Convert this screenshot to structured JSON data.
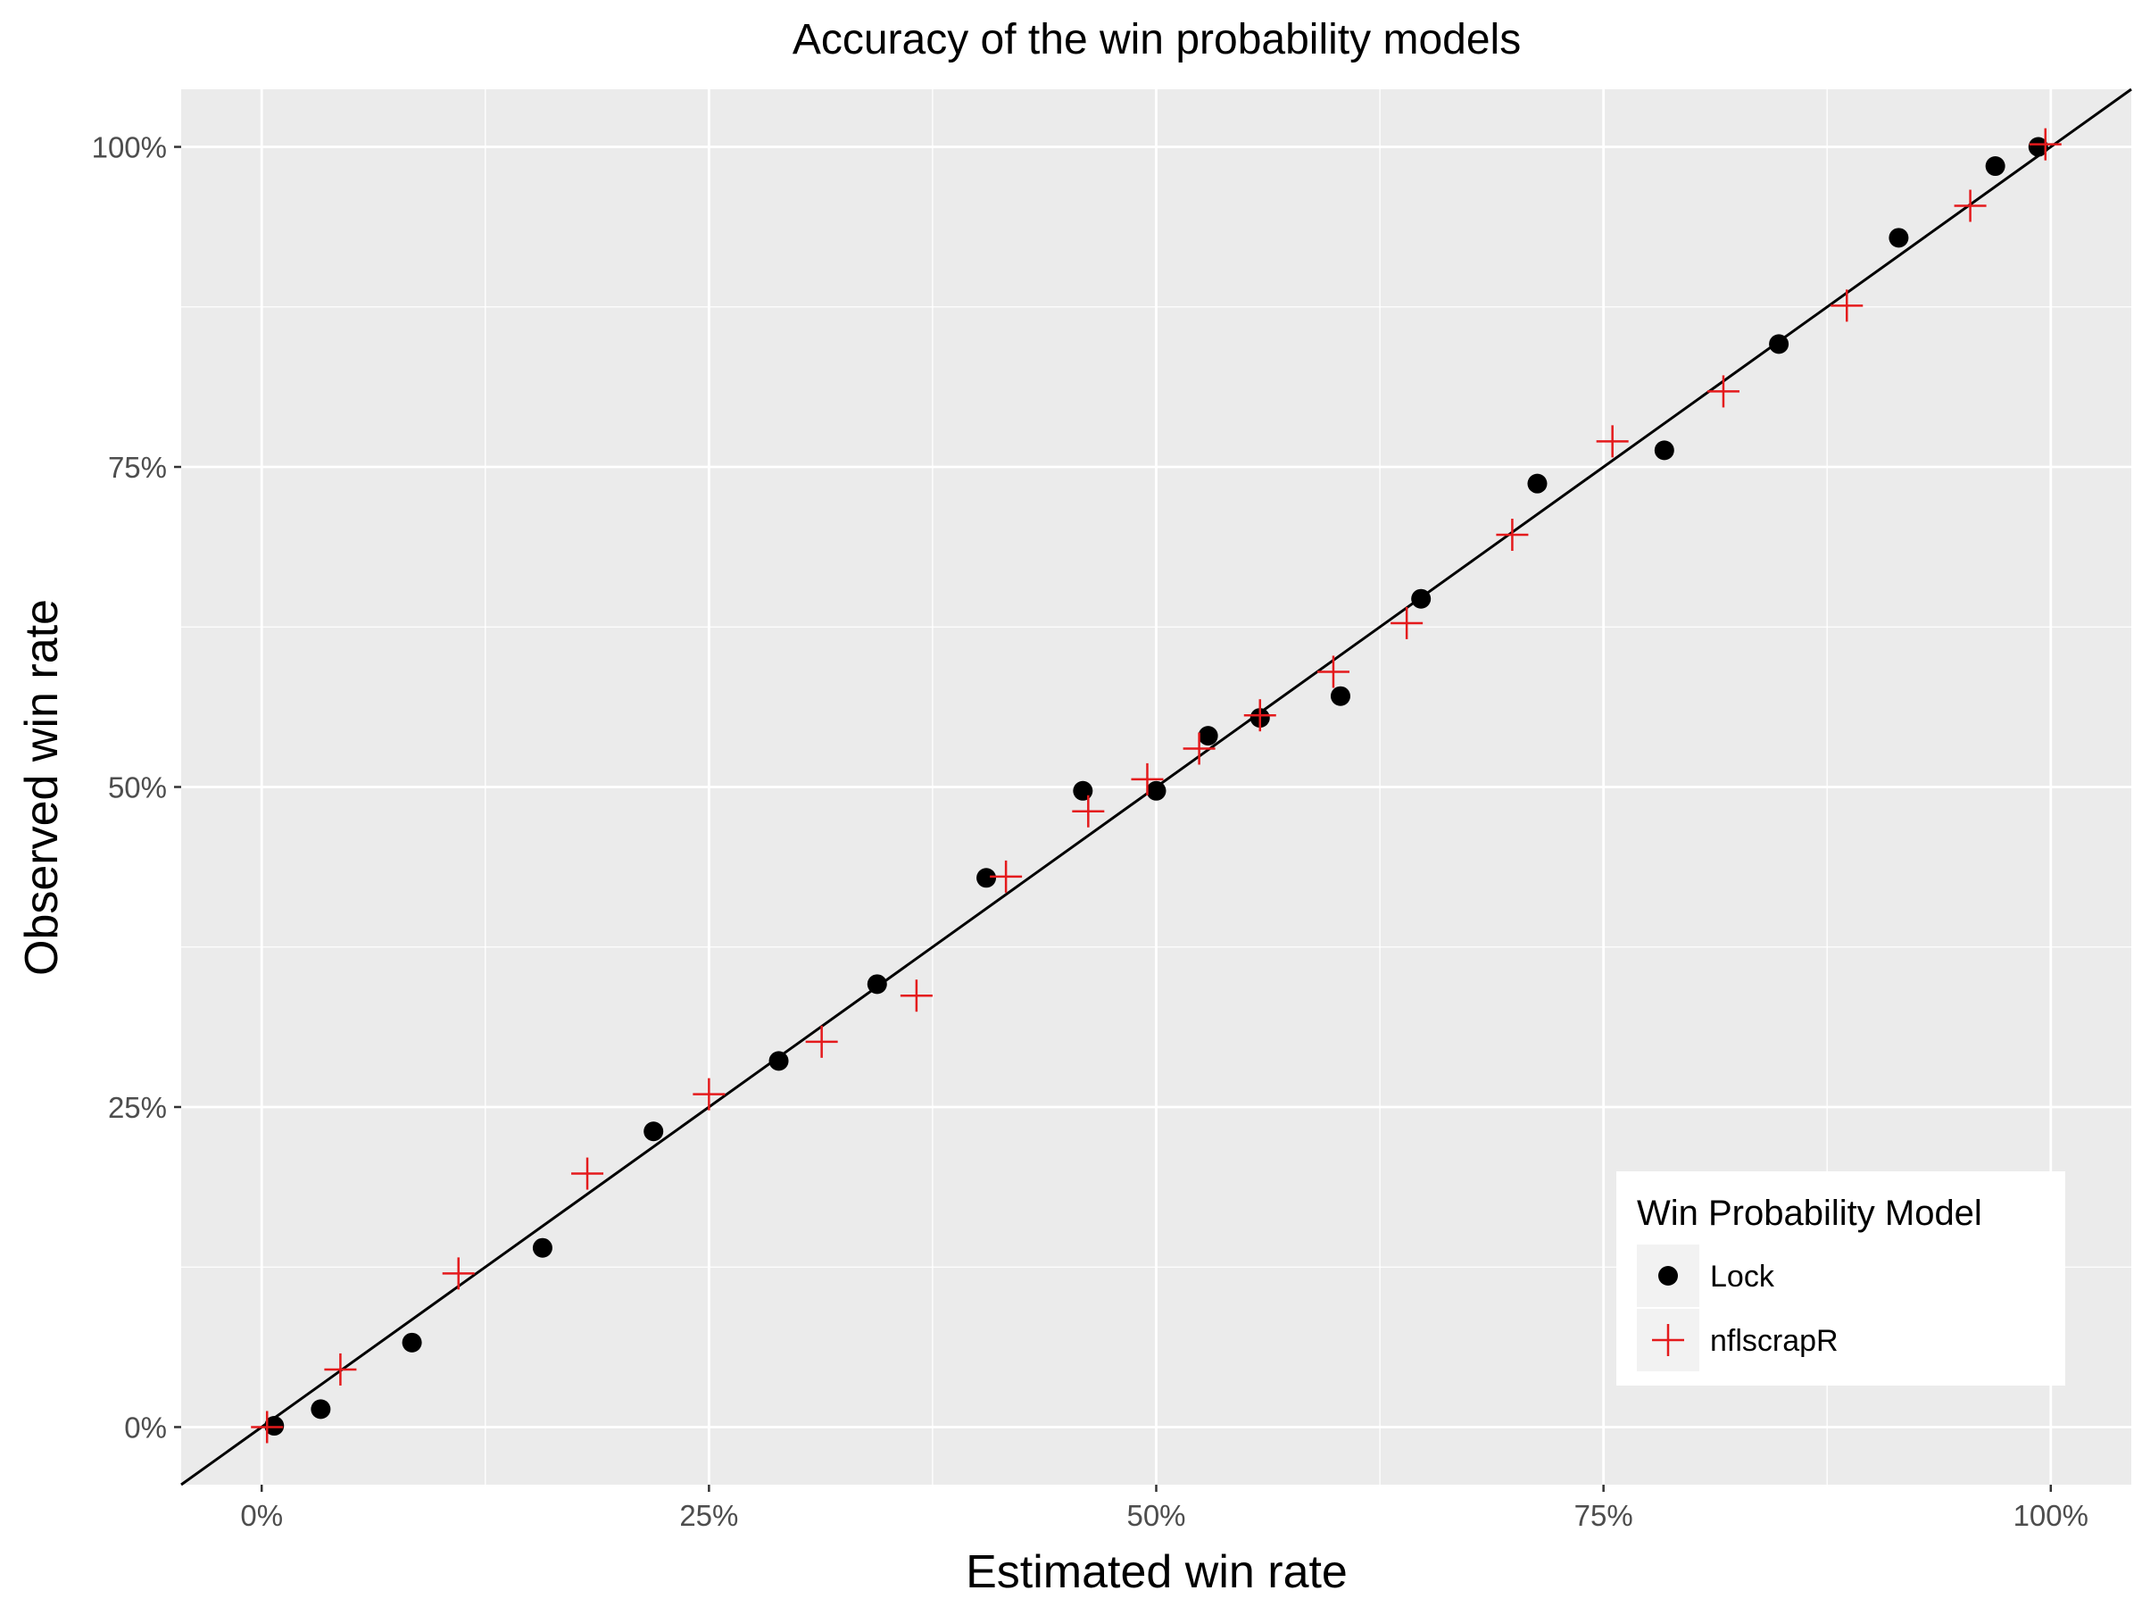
{
  "chart_data": {
    "type": "scatter",
    "title": "Accuracy of the win probability models",
    "xlabel": "Estimated win rate",
    "ylabel": "Observed win rate",
    "xlim": [
      -0.045,
      1.045
    ],
    "ylim": [
      -0.045,
      1.045
    ],
    "x_ticks": [
      0,
      0.25,
      0.5,
      0.75,
      1.0
    ],
    "x_tick_labels": [
      "0%",
      "25%",
      "50%",
      "75%",
      "100%"
    ],
    "y_ticks": [
      0,
      0.25,
      0.5,
      0.75,
      1.0
    ],
    "y_tick_labels": [
      "0%",
      "25%",
      "50%",
      "75%",
      "100%"
    ],
    "grid": true,
    "reference_line": {
      "slope": 1,
      "intercept": 0,
      "color": "#000000"
    },
    "legend": {
      "title": "Win Probability Model",
      "position": "bottom-right",
      "entries": [
        {
          "label": "Lock",
          "marker": "circle",
          "color": "#000000"
        },
        {
          "label": "nflscrapR",
          "marker": "plus",
          "color": "#e41a1c"
        }
      ]
    },
    "series": [
      {
        "name": "Lock",
        "marker": "circle",
        "color": "#000000",
        "points": [
          [
            0.007,
            0.001
          ],
          [
            0.033,
            0.014
          ],
          [
            0.084,
            0.066
          ],
          [
            0.157,
            0.14
          ],
          [
            0.219,
            0.231
          ],
          [
            0.289,
            0.286
          ],
          [
            0.344,
            0.346
          ],
          [
            0.405,
            0.429
          ],
          [
            0.459,
            0.497
          ],
          [
            0.5,
            0.497
          ],
          [
            0.529,
            0.54
          ],
          [
            0.558,
            0.554
          ],
          [
            0.603,
            0.571
          ],
          [
            0.648,
            0.647
          ],
          [
            0.713,
            0.737
          ],
          [
            0.784,
            0.763
          ],
          [
            0.848,
            0.846
          ],
          [
            0.915,
            0.929
          ],
          [
            0.969,
            0.985
          ],
          [
            0.993,
            1.0
          ]
        ]
      },
      {
        "name": "nflscrapR",
        "marker": "plus",
        "color": "#e41a1c",
        "points": [
          [
            0.003,
            0.0
          ],
          [
            0.044,
            0.045
          ],
          [
            0.11,
            0.12
          ],
          [
            0.182,
            0.198
          ],
          [
            0.25,
            0.26
          ],
          [
            0.313,
            0.301
          ],
          [
            0.366,
            0.337
          ],
          [
            0.416,
            0.43
          ],
          [
            0.462,
            0.481
          ],
          [
            0.495,
            0.506
          ],
          [
            0.524,
            0.53
          ],
          [
            0.558,
            0.556
          ],
          [
            0.599,
            0.59
          ],
          [
            0.64,
            0.628
          ],
          [
            0.699,
            0.697
          ],
          [
            0.755,
            0.77
          ],
          [
            0.817,
            0.809
          ],
          [
            0.886,
            0.876
          ],
          [
            0.955,
            0.954
          ],
          [
            0.997,
            1.002
          ]
        ]
      }
    ]
  }
}
